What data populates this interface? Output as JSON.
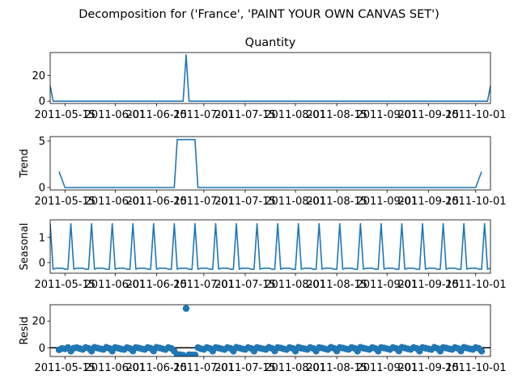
{
  "chart_data": {
    "type": "line",
    "suptitle": "Decomposition for ('France', 'PAINT YOUR OWN CANVAS SET')",
    "series_color": "#1f77b4",
    "x_tick_labels": [
      "2011-05-15",
      "2011-06-01",
      "2011-06-15",
      "2011-07-01",
      "2011-07-15",
      "2011-08-01",
      "2011-08-15",
      "2011-09-01",
      "2011-09-15",
      "2011-10-01"
    ],
    "x_tick_dates": [
      "2011-05-15",
      "2011-06-01",
      "2011-06-15",
      "2011-07-01",
      "2011-07-15",
      "2011-08-01",
      "2011-08-15",
      "2011-09-01",
      "2011-09-15",
      "2011-10-01"
    ],
    "x_range": [
      "2011-05-10",
      "2011-10-06"
    ],
    "panels": [
      {
        "id": "observed",
        "title": "Quantity",
        "ylabel": "",
        "kind": "line",
        "ylim": [
          -1.8,
          37.8
        ],
        "yticks": [
          0,
          20
        ],
        "points": [
          [
            "2011-05-10",
            12
          ],
          [
            "2011-05-11",
            0
          ],
          [
            "2011-06-24",
            0
          ],
          [
            "2011-06-25",
            36
          ],
          [
            "2011-06-26",
            0
          ],
          [
            "2011-10-05",
            0
          ],
          [
            "2011-10-06",
            12
          ]
        ]
      },
      {
        "id": "trend",
        "title": "",
        "ylabel": "Trend",
        "kind": "line",
        "ylim": [
          -0.26,
          5.46
        ],
        "yticks": [
          0,
          5
        ],
        "points": [
          [
            "2011-05-13",
            1.71
          ],
          [
            "2011-05-15",
            0
          ],
          [
            "2011-06-21",
            0
          ],
          [
            "2011-06-22",
            5.14
          ],
          [
            "2011-06-28",
            5.14
          ],
          [
            "2011-06-29",
            0
          ],
          [
            "2011-10-01",
            0
          ],
          [
            "2011-10-03",
            1.71
          ]
        ]
      },
      {
        "id": "seasonal",
        "title": "",
        "ylabel": "Seasonal",
        "kind": "line",
        "ylim": [
          -0.42,
          1.7
        ],
        "yticks": [
          0,
          1
        ],
        "period_days": 7,
        "peak_date": "2011-05-10",
        "pattern": [
          1.55,
          -0.26,
          -0.22,
          -0.22,
          -0.22,
          -0.26,
          -0.26
        ]
      },
      {
        "id": "resid",
        "title": "",
        "ylabel": "Resid",
        "kind": "scatter",
        "ylim": [
          -6.5,
          32.2
        ],
        "yticks": [
          0,
          20
        ],
        "baseline": 0,
        "points": [
          [
            "2011-05-13",
            -1.5
          ],
          [
            "2011-05-14",
            -0.5
          ],
          [
            "2011-05-15",
            -0.8
          ],
          [
            "2011-05-16",
            0.2
          ],
          [
            "2011-05-17",
            -2.5
          ],
          [
            "2011-05-18",
            -0.3
          ],
          [
            "2011-05-19",
            0.1
          ],
          [
            "2011-05-20",
            -0.6
          ],
          [
            "2011-05-21",
            -1.2
          ],
          [
            "2011-05-22",
            0.2
          ],
          [
            "2011-05-23",
            -0.4
          ],
          [
            "2011-05-24",
            -2.5
          ],
          [
            "2011-05-25",
            0.3
          ],
          [
            "2011-05-26",
            -0.2
          ],
          [
            "2011-05-27",
            -0.8
          ],
          [
            "2011-05-28",
            -1.2
          ],
          [
            "2011-05-29",
            0.3
          ],
          [
            "2011-05-30",
            -0.4
          ],
          [
            "2011-05-31",
            -2.5
          ],
          [
            "2011-06-01",
            0.2
          ],
          [
            "2011-06-02",
            -0.3
          ],
          [
            "2011-06-03",
            -0.9
          ],
          [
            "2011-06-04",
            -1.3
          ],
          [
            "2011-06-05",
            0.1
          ],
          [
            "2011-06-06",
            -0.5
          ],
          [
            "2011-06-07",
            -2.4
          ],
          [
            "2011-06-08",
            0.2
          ],
          [
            "2011-06-09",
            -0.2
          ],
          [
            "2011-06-10",
            -0.8
          ],
          [
            "2011-06-11",
            -1.2
          ],
          [
            "2011-06-12",
            0.2
          ],
          [
            "2011-06-13",
            -0.4
          ],
          [
            "2011-06-14",
            -2.4
          ],
          [
            "2011-06-15",
            0.3
          ],
          [
            "2011-06-16",
            -0.2
          ],
          [
            "2011-06-17",
            -0.7
          ],
          [
            "2011-06-18",
            -1.3
          ],
          [
            "2011-06-19",
            0.2
          ],
          [
            "2011-06-20",
            -0.5
          ],
          [
            "2011-06-21",
            -2.5
          ],
          [
            "2011-06-22",
            -5.1
          ],
          [
            "2011-06-23",
            -5.2
          ],
          [
            "2011-06-24",
            -5.6
          ],
          [
            "2011-06-25",
            29.4
          ],
          [
            "2011-06-26",
            -5.2
          ],
          [
            "2011-06-27",
            -5.4
          ],
          [
            "2011-06-28",
            -5.3
          ],
          [
            "2011-06-29",
            0.1
          ],
          [
            "2011-06-30",
            -0.7
          ],
          [
            "2011-07-01",
            -1.2
          ],
          [
            "2011-07-02",
            0.2
          ],
          [
            "2011-07-03",
            -0.4
          ],
          [
            "2011-07-04",
            -2.5
          ],
          [
            "2011-07-05",
            0.2
          ],
          [
            "2011-07-06",
            -0.2
          ],
          [
            "2011-07-07",
            -0.8
          ],
          [
            "2011-07-08",
            -1.3
          ],
          [
            "2011-07-09",
            0.2
          ],
          [
            "2011-07-10",
            -0.4
          ],
          [
            "2011-07-11",
            -2.5
          ],
          [
            "2011-07-12",
            0.3
          ],
          [
            "2011-07-13",
            -0.2
          ],
          [
            "2011-07-14",
            -0.8
          ],
          [
            "2011-07-15",
            -1.2
          ],
          [
            "2011-07-16",
            0.2
          ],
          [
            "2011-07-17",
            -0.5
          ],
          [
            "2011-07-18",
            -2.5
          ],
          [
            "2011-07-19",
            0.2
          ],
          [
            "2011-07-20",
            -0.3
          ],
          [
            "2011-07-21",
            -0.8
          ],
          [
            "2011-07-22",
            -1.2
          ],
          [
            "2011-07-23",
            0.3
          ],
          [
            "2011-07-24",
            -0.4
          ],
          [
            "2011-07-25",
            -2.4
          ],
          [
            "2011-07-26",
            0.2
          ],
          [
            "2011-07-27",
            -0.2
          ],
          [
            "2011-07-28",
            -0.8
          ],
          [
            "2011-07-29",
            -1.3
          ],
          [
            "2011-07-30",
            0.2
          ],
          [
            "2011-07-31",
            -0.4
          ],
          [
            "2011-08-01",
            -2.5
          ],
          [
            "2011-08-02",
            0.3
          ],
          [
            "2011-08-03",
            -0.3
          ],
          [
            "2011-08-04",
            -0.7
          ],
          [
            "2011-08-05",
            -1.2
          ],
          [
            "2011-08-06",
            0.2
          ],
          [
            "2011-08-07",
            -0.5
          ],
          [
            "2011-08-08",
            -2.5
          ],
          [
            "2011-08-09",
            0.2
          ],
          [
            "2011-08-10",
            -0.2
          ],
          [
            "2011-08-11",
            -0.8
          ],
          [
            "2011-08-12",
            -1.3
          ],
          [
            "2011-08-13",
            0.3
          ],
          [
            "2011-08-14",
            -0.4
          ],
          [
            "2011-08-15",
            -2.4
          ],
          [
            "2011-08-16",
            0.2
          ],
          [
            "2011-08-17",
            -0.2
          ],
          [
            "2011-08-18",
            -0.8
          ],
          [
            "2011-08-19",
            -1.2
          ],
          [
            "2011-08-20",
            0.2
          ],
          [
            "2011-08-21",
            -0.4
          ],
          [
            "2011-08-22",
            -2.5
          ],
          [
            "2011-08-23",
            0.3
          ],
          [
            "2011-08-24",
            -0.3
          ],
          [
            "2011-08-25",
            -0.8
          ],
          [
            "2011-08-26",
            -1.2
          ],
          [
            "2011-08-27",
            0.2
          ],
          [
            "2011-08-28",
            -0.5
          ],
          [
            "2011-08-29",
            -2.5
          ],
          [
            "2011-08-30",
            0.2
          ],
          [
            "2011-08-31",
            -0.2
          ],
          [
            "2011-09-01",
            -0.7
          ],
          [
            "2011-09-02",
            -1.3
          ],
          [
            "2011-09-03",
            0.2
          ],
          [
            "2011-09-04",
            -0.4
          ],
          [
            "2011-09-05",
            -2.4
          ],
          [
            "2011-09-06",
            0.3
          ],
          [
            "2011-09-07",
            -0.2
          ],
          [
            "2011-09-08",
            -0.8
          ],
          [
            "2011-09-09",
            -1.2
          ],
          [
            "2011-09-10",
            0.2
          ],
          [
            "2011-09-11",
            -0.4
          ],
          [
            "2011-09-12",
            -2.5
          ],
          [
            "2011-09-13",
            0.2
          ],
          [
            "2011-09-14",
            -0.3
          ],
          [
            "2011-09-15",
            -0.8
          ],
          [
            "2011-09-16",
            -1.3
          ],
          [
            "2011-09-17",
            0.3
          ],
          [
            "2011-09-18",
            -0.4
          ],
          [
            "2011-09-19",
            -2.5
          ],
          [
            "2011-09-20",
            0.2
          ],
          [
            "2011-09-21",
            -0.2
          ],
          [
            "2011-09-22",
            -0.8
          ],
          [
            "2011-09-23",
            -1.2
          ],
          [
            "2011-09-24",
            0.2
          ],
          [
            "2011-09-25",
            -0.5
          ],
          [
            "2011-09-26",
            -2.4
          ],
          [
            "2011-09-27",
            0.3
          ],
          [
            "2011-09-28",
            -0.2
          ],
          [
            "2011-09-29",
            -0.8
          ],
          [
            "2011-09-30",
            -1.2
          ],
          [
            "2011-10-01",
            0.2
          ],
          [
            "2011-10-02",
            -0.4
          ],
          [
            "2011-10-03",
            -2.5
          ]
        ]
      }
    ]
  }
}
